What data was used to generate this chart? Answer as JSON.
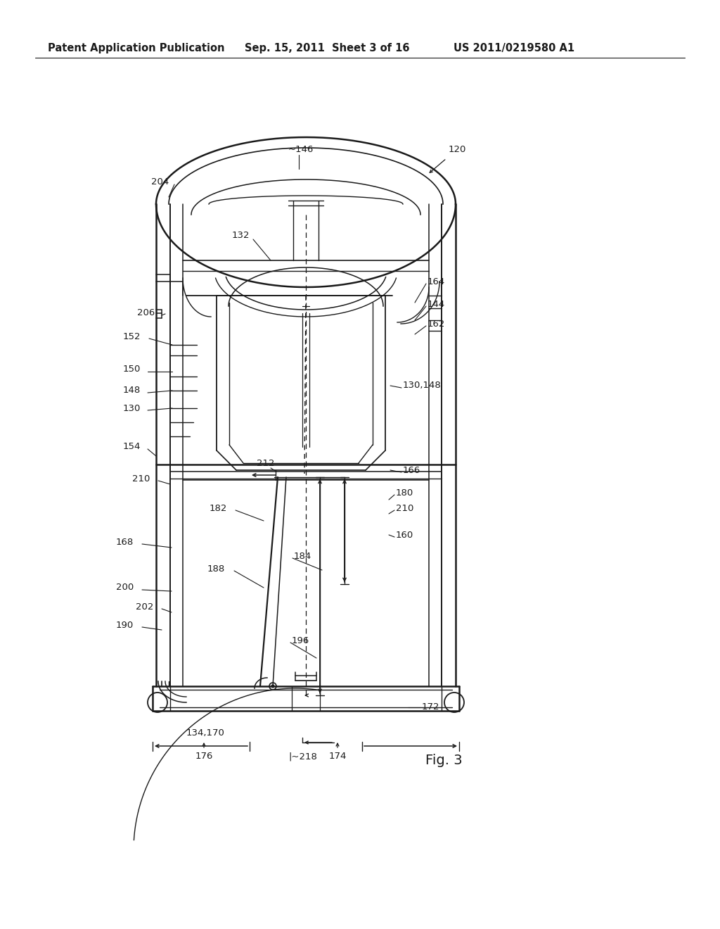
{
  "header_left": "Patent Application Publication",
  "header_mid": "Sep. 15, 2011  Sheet 3 of 16",
  "header_right": "US 2011/0219580 A1",
  "fig_label": "Fig. 3",
  "background": "#ffffff",
  "line_color": "#1a1a1a",
  "text_color": "#1a1a1a",
  "header_fontsize": 10.5,
  "label_fontsize": 9.5,
  "fig_label_fontsize": 14
}
